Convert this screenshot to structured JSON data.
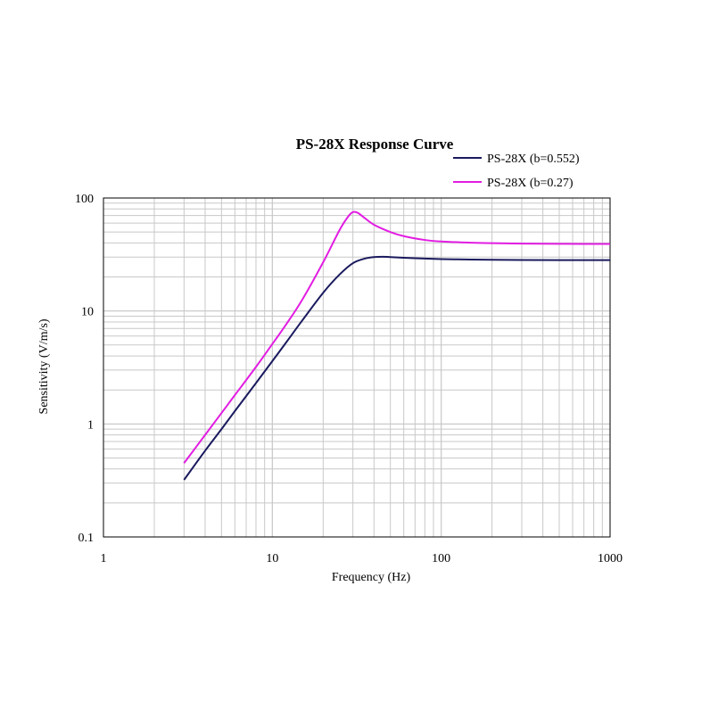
{
  "chart_data": {
    "type": "line",
    "title": "PS-28X Response Curve",
    "xlabel": "Frequency (Hz)",
    "ylabel": "Sensitivity (V/m/s)",
    "xscale": "log",
    "yscale": "log",
    "xlim": [
      1,
      1000
    ],
    "ylim": [
      0.1,
      100
    ],
    "x_ticks": [
      1,
      10,
      100,
      1000
    ],
    "x_tick_labels": [
      "1",
      "10",
      "100",
      "1000"
    ],
    "y_ticks": [
      0.1,
      1,
      10,
      100
    ],
    "y_tick_labels": [
      "0.1",
      "1",
      "10",
      "100"
    ],
    "grid": true,
    "legend_position": "top-right",
    "series": [
      {
        "name": "PS-28X (b=0.552)",
        "color": "#1a1a5e",
        "x": [
          3,
          4,
          5,
          6,
          8,
          10,
          12,
          15,
          20,
          25,
          30,
          35,
          40,
          45,
          50,
          60,
          80,
          100,
          150,
          200,
          300,
          500,
          1000
        ],
        "y": [
          0.32,
          0.58,
          0.9,
          1.3,
          2.3,
          3.6,
          5.2,
          8.2,
          14.5,
          21,
          26.5,
          29,
          30,
          30.2,
          30,
          29.6,
          29.1,
          28.8,
          28.5,
          28.4,
          28.3,
          28.2,
          28.2
        ]
      },
      {
        "name": "PS-28X (b=0.27)",
        "color": "#e21de2",
        "x": [
          3,
          4,
          5,
          6,
          8,
          10,
          12,
          15,
          20,
          25,
          28,
          30,
          32,
          35,
          40,
          50,
          60,
          80,
          100,
          150,
          200,
          300,
          500,
          1000
        ],
        "y": [
          0.45,
          0.8,
          1.25,
          1.8,
          3.2,
          5.1,
          7.5,
          12.5,
          27,
          52,
          68,
          75,
          74,
          67,
          58,
          50,
          46,
          42.5,
          41.2,
          40.2,
          39.8,
          39.5,
          39.3,
          39.2
        ]
      }
    ]
  }
}
